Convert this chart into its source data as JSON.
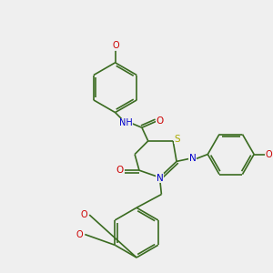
{
  "background_color": "#efefef",
  "bond_color": "#3a6b20",
  "atom_colors": {
    "N": "#0000cc",
    "O": "#cc0000",
    "S": "#aaaa00",
    "H": "#555555",
    "C": "#3a6b20"
  },
  "figsize": [
    3.0,
    3.0
  ],
  "dpi": 100
}
